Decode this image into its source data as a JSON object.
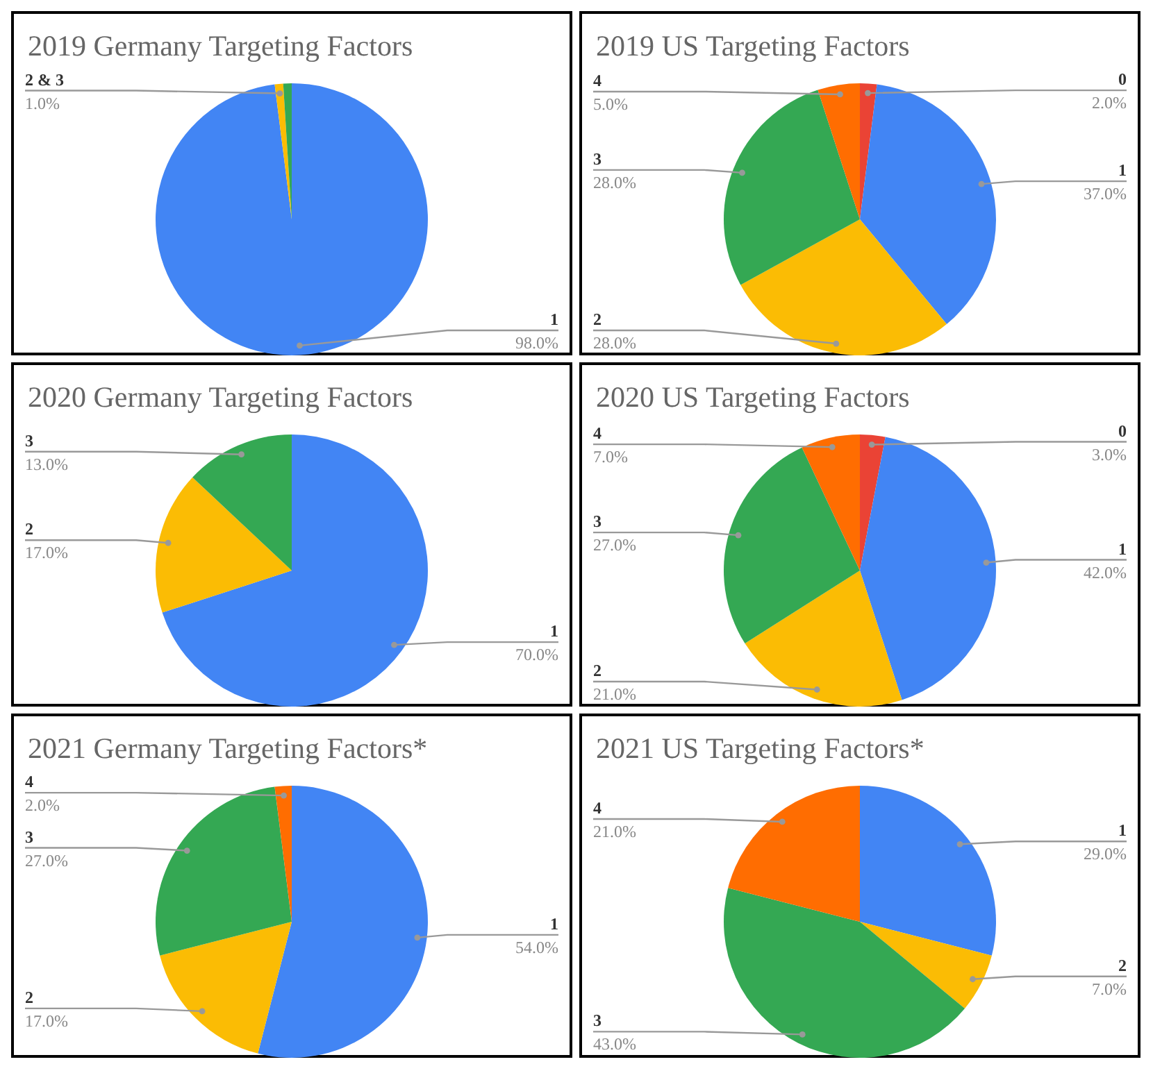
{
  "chart_data": [
    {
      "type": "pie",
      "title": "2019 Germany Targeting Factors",
      "categories": [
        "1",
        "2 & 3",
        null
      ],
      "values": [
        98,
        1,
        1
      ],
      "value_labels": [
        "98.0%",
        "1.0%",
        null
      ],
      "colors": [
        "#4285f4",
        "#fbbc04",
        "#34a853"
      ]
    },
    {
      "type": "pie",
      "title": "2019 US Targeting Factors",
      "categories": [
        "0",
        "1",
        "2",
        "3",
        "4"
      ],
      "values": [
        2,
        37,
        28,
        28,
        5
      ],
      "value_labels": [
        "2.0%",
        "37.0%",
        "28.0%",
        "28.0%",
        "5.0%"
      ],
      "colors": [
        "#ea4335",
        "#4285f4",
        "#fbbc04",
        "#34a853",
        "#ff6d01"
      ]
    },
    {
      "type": "pie",
      "title": "2020 Germany Targeting Factors",
      "categories": [
        "1",
        "2",
        "3"
      ],
      "values": [
        70,
        17,
        13
      ],
      "value_labels": [
        "70.0%",
        "17.0%",
        "13.0%"
      ],
      "colors": [
        "#4285f4",
        "#fbbc04",
        "#34a853"
      ]
    },
    {
      "type": "pie",
      "title": "2020 US Targeting Factors",
      "categories": [
        "0",
        "1",
        "2",
        "3",
        "4"
      ],
      "values": [
        3,
        42,
        21,
        27,
        7
      ],
      "value_labels": [
        "3.0%",
        "42.0%",
        "21.0%",
        "27.0%",
        "7.0%"
      ],
      "colors": [
        "#ea4335",
        "#4285f4",
        "#fbbc04",
        "#34a853",
        "#ff6d01"
      ]
    },
    {
      "type": "pie",
      "title": "2021 Germany Targeting Factors*",
      "categories": [
        "1",
        "2",
        "3",
        "4"
      ],
      "values": [
        54,
        17,
        27,
        2
      ],
      "value_labels": [
        "54.0%",
        "17.0%",
        "27.0%",
        "2.0%"
      ],
      "colors": [
        "#4285f4",
        "#fbbc04",
        "#34a853",
        "#ff6d01"
      ]
    },
    {
      "type": "pie",
      "title": "2021 US Targeting Factors*",
      "categories": [
        "1",
        "2",
        "3",
        "4"
      ],
      "values": [
        29,
        7,
        43,
        21
      ],
      "value_labels": [
        "29.0%",
        "7.0%",
        "43.0%",
        "21.0%"
      ],
      "colors": [
        "#4285f4",
        "#fbbc04",
        "#34a853",
        "#ff6d01"
      ]
    }
  ]
}
